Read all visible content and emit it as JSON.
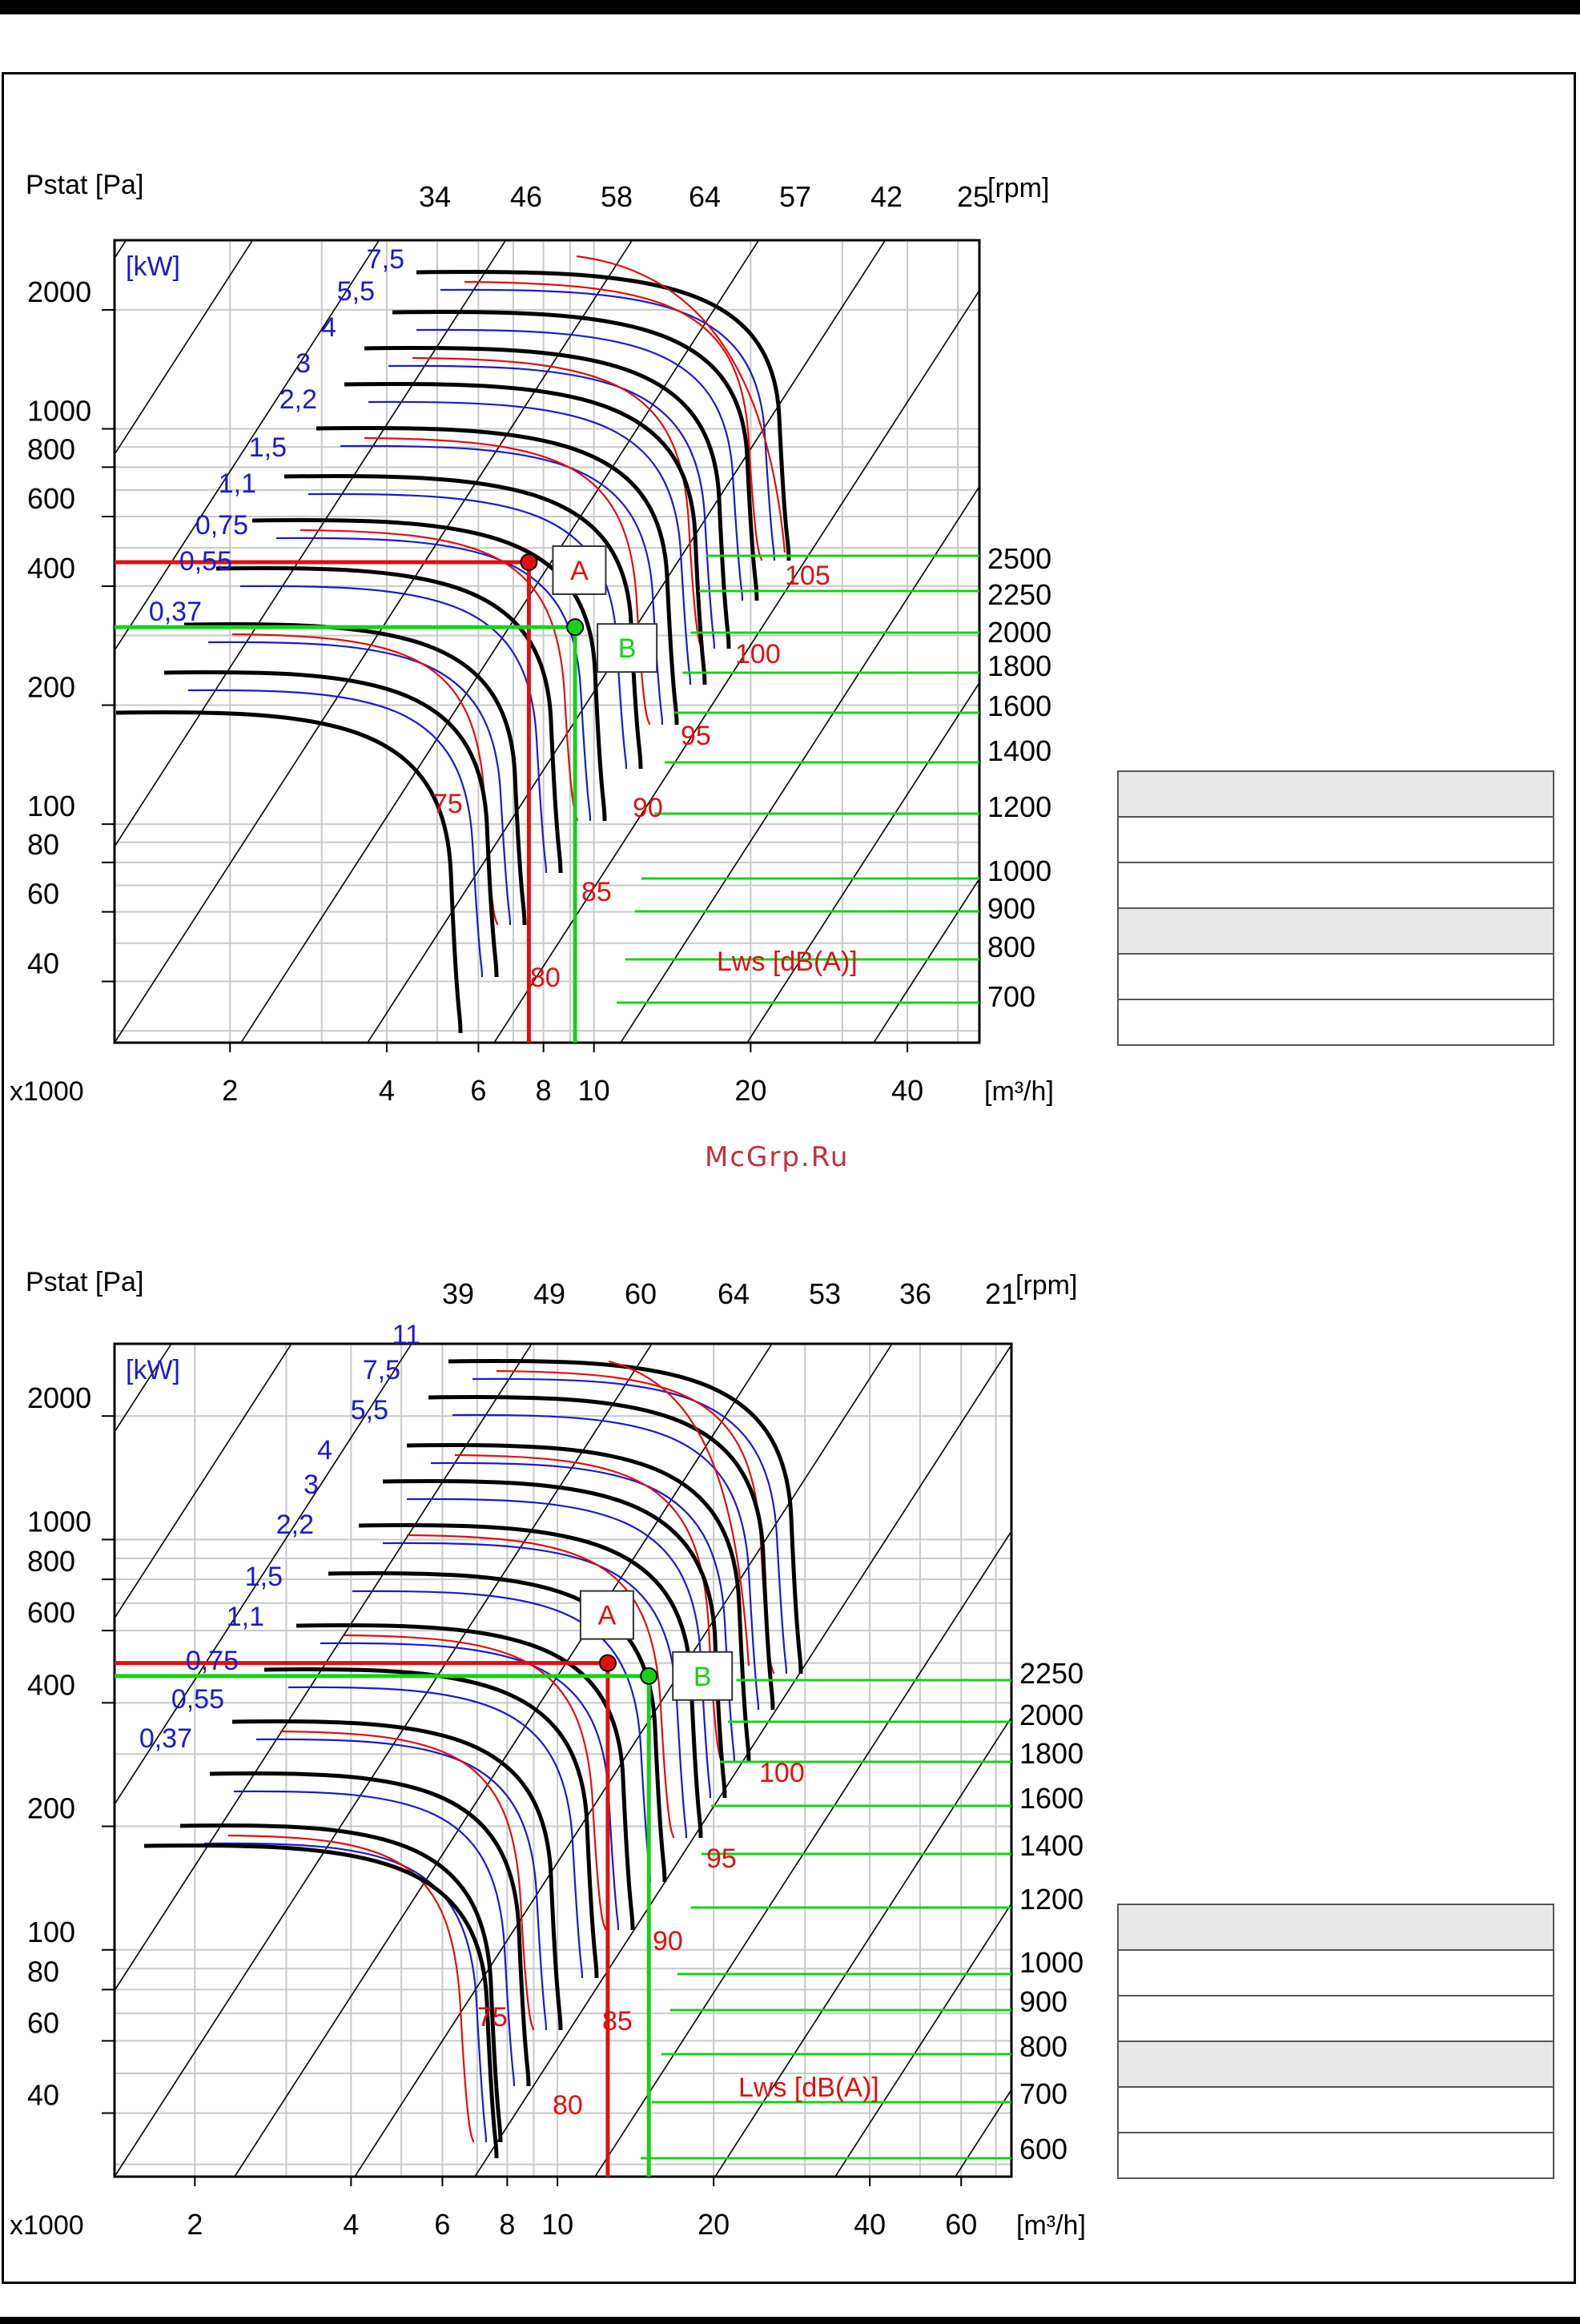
{
  "watermark": "McGrp.Ru",
  "chart_data": [
    {
      "type": "line",
      "title": "",
      "ylabel": "Pstat [Pa]",
      "xlabel_left": "x1000",
      "xlabel_unit": "[m³/h]",
      "kw_label": "[kW]",
      "lw_label": "Lws [dB(A)]",
      "rpm_unit": "[rpm]",
      "x_scale": "log",
      "y_scale": "log",
      "xlim": [
        1.2,
        55
      ],
      "ylim": [
        28,
        3000
      ],
      "x_ticks": [
        {
          "v": 2,
          "t": "2"
        },
        {
          "v": 4,
          "t": "4"
        },
        {
          "v": 6,
          "t": "6"
        },
        {
          "v": 8,
          "t": "8"
        },
        {
          "v": 10,
          "t": "10"
        },
        {
          "v": 20,
          "t": "20"
        },
        {
          "v": 40,
          "t": "40"
        }
      ],
      "y_ticks": [
        {
          "v": 2000,
          "t": "2000"
        },
        {
          "v": 1000,
          "t": "1000"
        },
        {
          "v": 800,
          "t": "800"
        },
        {
          "v": 600,
          "t": "600"
        },
        {
          "v": 400,
          "t": "400"
        },
        {
          "v": 200,
          "t": "200"
        },
        {
          "v": 100,
          "t": "100"
        },
        {
          "v": 80,
          "t": "80"
        },
        {
          "v": 60,
          "t": "60"
        },
        {
          "v": 40,
          "t": "40"
        }
      ],
      "rpm_labels": [
        "34",
        "46",
        "58",
        "64",
        "57",
        "42",
        "25"
      ],
      "kw_labels": [
        "7,5",
        "5,5",
        "4",
        "3",
        "2,2",
        "1,5",
        "1,1",
        "0,75",
        "0,55",
        "0,37"
      ],
      "lw_labels": [
        "105",
        "100",
        "95",
        "90",
        "85",
        "80",
        "75"
      ],
      "right_labels": [
        "2500",
        "2250",
        "2000",
        "1800",
        "1600",
        "1400",
        "1200",
        "1000",
        "900",
        "800",
        "700"
      ],
      "point_a": {
        "label": "A",
        "x": 7.5,
        "y": 460
      },
      "point_b": {
        "label": "B",
        "x": 9.2,
        "y": 315
      },
      "colors": {
        "fan_curve": "#000000",
        "kw_curve": "#1a1acc",
        "noise_curve": "#e01010",
        "point_a": "#e01010",
        "point_b": "#18d018",
        "grid": "#c8c8c8"
      }
    },
    {
      "type": "line",
      "title": "",
      "ylabel": "Pstat [Pa]",
      "xlabel_left": "x1000",
      "xlabel_unit": "[m³/h]",
      "kw_label": "[kW]",
      "lw_label": "Lws [dB(A)]",
      "rpm_unit": "[rpm]",
      "x_scale": "log",
      "y_scale": "log",
      "xlim": [
        1.4,
        75
      ],
      "ylim": [
        28,
        3000
      ],
      "x_ticks": [
        {
          "v": 2,
          "t": "2"
        },
        {
          "v": 4,
          "t": "4"
        },
        {
          "v": 6,
          "t": "6"
        },
        {
          "v": 8,
          "t": "8"
        },
        {
          "v": 10,
          "t": "10"
        },
        {
          "v": 20,
          "t": "20"
        },
        {
          "v": 40,
          "t": "40"
        },
        {
          "v": 60,
          "t": "60"
        }
      ],
      "y_ticks": [
        {
          "v": 2000,
          "t": "2000"
        },
        {
          "v": 1000,
          "t": "1000"
        },
        {
          "v": 800,
          "t": "800"
        },
        {
          "v": 600,
          "t": "600"
        },
        {
          "v": 400,
          "t": "400"
        },
        {
          "v": 200,
          "t": "200"
        },
        {
          "v": 100,
          "t": "100"
        },
        {
          "v": 80,
          "t": "80"
        },
        {
          "v": 60,
          "t": "60"
        },
        {
          "v": 40,
          "t": "40"
        }
      ],
      "rpm_labels": [
        "39",
        "49",
        "60",
        "64",
        "53",
        "36",
        "21"
      ],
      "kw_labels": [
        "11",
        "7,5",
        "5,5",
        "4",
        "3",
        "2,2",
        "1,5",
        "1,1",
        "0,75",
        "0,55",
        "0,37"
      ],
      "lw_labels": [
        "100",
        "95",
        "90",
        "85",
        "80",
        "75"
      ],
      "right_labels": [
        "2250",
        "2000",
        "1800",
        "1600",
        "1400",
        "1200",
        "1000",
        "900",
        "800",
        "700",
        "600"
      ],
      "point_a": {
        "label": "A",
        "x": 12.5,
        "y": 500
      },
      "point_b": {
        "label": "B",
        "x": 15,
        "y": 465
      },
      "colors": {
        "fan_curve": "#000000",
        "kw_curve": "#1a1acc",
        "noise_curve": "#e01010",
        "point_a": "#e01010",
        "point_b": "#18d018",
        "grid": "#c8c8c8"
      }
    }
  ]
}
